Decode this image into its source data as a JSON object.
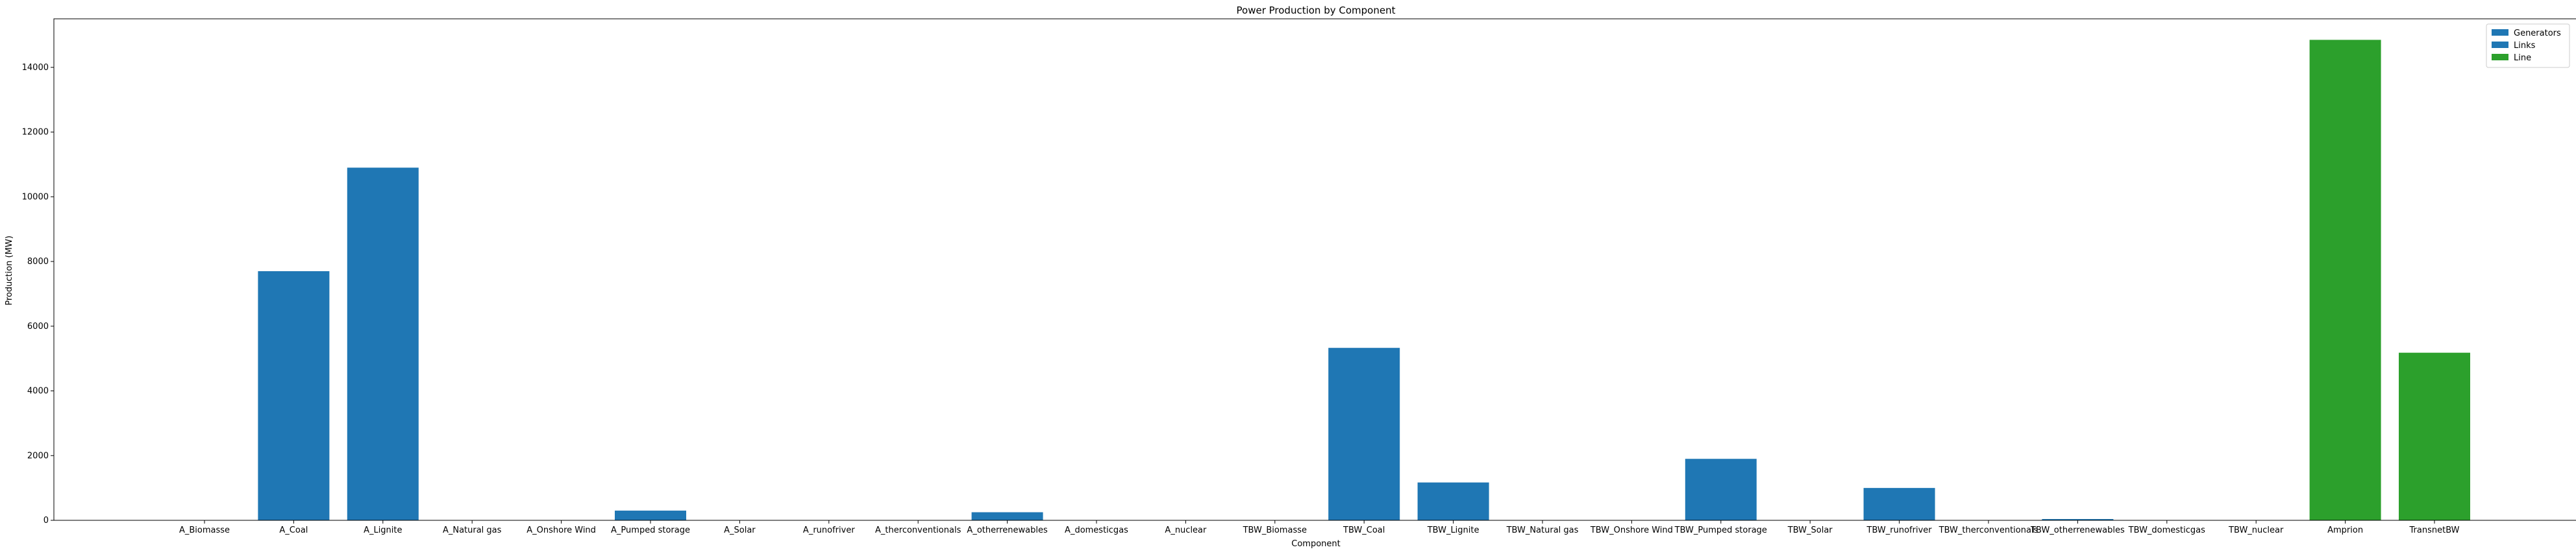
{
  "chart_data": {
    "type": "bar",
    "title": "Power Production by Component",
    "xlabel": "Component",
    "ylabel": "Production (MW)",
    "ylim": [
      0,
      15500
    ],
    "yticks": [
      0,
      2000,
      4000,
      6000,
      8000,
      10000,
      12000,
      14000
    ],
    "grid": false,
    "legend_position": "top-right",
    "categories": [
      "A_Biomasse",
      "A_Coal",
      "A_Lignite",
      "A_Natural gas",
      "A_Onshore Wind",
      "A_Pumped storage",
      "A_Solar",
      "A_runofriver",
      "A_therconventionals",
      "A_otherrenewables",
      "A_domesticgas",
      "A_nuclear",
      "TBW_Biomasse",
      "TBW_Coal",
      "TBW_Lignite",
      "TBW_Natural gas",
      "TBW_Onshore Wind",
      "TBW_Pumped storage",
      "TBW_Solar",
      "TBW_runofriver",
      "TBW_therconventionals",
      "TBW_otherrenewables",
      "TBW_domesticgas",
      "TBW_nuclear",
      "Amprion",
      "TransnetBW"
    ],
    "values": [
      0,
      7700,
      10900,
      0,
      0,
      300,
      0,
      0,
      0,
      250,
      0,
      0,
      0,
      5330,
      1170,
      0,
      0,
      1900,
      0,
      1000,
      0,
      40,
      0,
      0,
      14850,
      5180
    ],
    "groups": [
      "Generators",
      "Generators",
      "Generators",
      "Generators",
      "Generators",
      "Generators",
      "Generators",
      "Generators",
      "Generators",
      "Generators",
      "Generators",
      "Generators",
      "Generators",
      "Generators",
      "Generators",
      "Generators",
      "Generators",
      "Generators",
      "Generators",
      "Generators",
      "Generators",
      "Generators",
      "Generators",
      "Generators",
      "Line",
      "Line"
    ],
    "legend": [
      {
        "name": "Generators",
        "color": "#1f77b4"
      },
      {
        "name": "Links",
        "color": "#1f77b4"
      },
      {
        "name": "Line",
        "color": "#2ca02c"
      }
    ]
  }
}
